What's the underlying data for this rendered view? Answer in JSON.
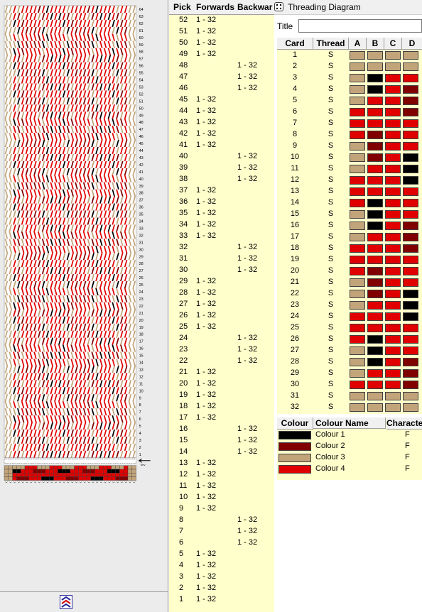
{
  "palette": {
    "c1": "#000000",
    "c2": "#800000",
    "c3": "#c2a47a",
    "c4": "#e00000"
  },
  "weave": {
    "row_numbers": [
      "64",
      "63",
      "62",
      "61",
      "60",
      "59",
      "58",
      "57",
      "56",
      "55",
      "54",
      "53",
      "52",
      "51",
      "50",
      "49",
      "48",
      "47",
      "46",
      "45",
      "44",
      "43",
      "42",
      "41",
      "40",
      "39",
      "38",
      "37",
      "36",
      "35",
      "34",
      "33",
      "32",
      "31",
      "30",
      "29",
      "28",
      "27",
      "26",
      "25",
      "24",
      "23",
      "22",
      "21",
      "20",
      "19",
      "18",
      "17",
      "16",
      "15",
      "14",
      "13",
      "12",
      "11",
      "10",
      "9",
      "8",
      "7",
      "6",
      "5",
      "4",
      "3",
      "2",
      "1"
    ],
    "cursor_label": "Sev"
  },
  "picks": {
    "headers": {
      "pick": "Pick",
      "forwards": "Forwards",
      "backwards": "Backwar"
    },
    "rows": [
      {
        "pick": "52",
        "fwd": "1 - 32",
        "bwd": ""
      },
      {
        "pick": "51",
        "fwd": "1 - 32",
        "bwd": ""
      },
      {
        "pick": "50",
        "fwd": "1 - 32",
        "bwd": ""
      },
      {
        "pick": "49",
        "fwd": "1 - 32",
        "bwd": ""
      },
      {
        "pick": "48",
        "fwd": "",
        "bwd": "1 - 32"
      },
      {
        "pick": "47",
        "fwd": "",
        "bwd": "1 - 32"
      },
      {
        "pick": "46",
        "fwd": "",
        "bwd": "1 - 32"
      },
      {
        "pick": "45",
        "fwd": "1 - 32",
        "bwd": ""
      },
      {
        "pick": "44",
        "fwd": "1 - 32",
        "bwd": ""
      },
      {
        "pick": "43",
        "fwd": "1 - 32",
        "bwd": ""
      },
      {
        "pick": "42",
        "fwd": "1 - 32",
        "bwd": ""
      },
      {
        "pick": "41",
        "fwd": "1 - 32",
        "bwd": ""
      },
      {
        "pick": "40",
        "fwd": "",
        "bwd": "1 - 32"
      },
      {
        "pick": "39",
        "fwd": "",
        "bwd": "1 - 32"
      },
      {
        "pick": "38",
        "fwd": "",
        "bwd": "1 - 32"
      },
      {
        "pick": "37",
        "fwd": "1 - 32",
        "bwd": ""
      },
      {
        "pick": "36",
        "fwd": "1 - 32",
        "bwd": ""
      },
      {
        "pick": "35",
        "fwd": "1 - 32",
        "bwd": ""
      },
      {
        "pick": "34",
        "fwd": "1 - 32",
        "bwd": ""
      },
      {
        "pick": "33",
        "fwd": "1 - 32",
        "bwd": ""
      },
      {
        "pick": "32",
        "fwd": "",
        "bwd": "1 - 32"
      },
      {
        "pick": "31",
        "fwd": "",
        "bwd": "1 - 32"
      },
      {
        "pick": "30",
        "fwd": "",
        "bwd": "1 - 32"
      },
      {
        "pick": "29",
        "fwd": "1 - 32",
        "bwd": ""
      },
      {
        "pick": "28",
        "fwd": "1 - 32",
        "bwd": ""
      },
      {
        "pick": "27",
        "fwd": "1 - 32",
        "bwd": ""
      },
      {
        "pick": "26",
        "fwd": "1 - 32",
        "bwd": ""
      },
      {
        "pick": "25",
        "fwd": "1 - 32",
        "bwd": ""
      },
      {
        "pick": "24",
        "fwd": "",
        "bwd": "1 - 32"
      },
      {
        "pick": "23",
        "fwd": "",
        "bwd": "1 - 32"
      },
      {
        "pick": "22",
        "fwd": "",
        "bwd": "1 - 32"
      },
      {
        "pick": "21",
        "fwd": "1 - 32",
        "bwd": ""
      },
      {
        "pick": "20",
        "fwd": "1 - 32",
        "bwd": ""
      },
      {
        "pick": "19",
        "fwd": "1 - 32",
        "bwd": ""
      },
      {
        "pick": "18",
        "fwd": "1 - 32",
        "bwd": ""
      },
      {
        "pick": "17",
        "fwd": "1 - 32",
        "bwd": ""
      },
      {
        "pick": "16",
        "fwd": "",
        "bwd": "1 - 32"
      },
      {
        "pick": "15",
        "fwd": "",
        "bwd": "1 - 32"
      },
      {
        "pick": "14",
        "fwd": "",
        "bwd": "1 - 32"
      },
      {
        "pick": "13",
        "fwd": "1 - 32",
        "bwd": ""
      },
      {
        "pick": "12",
        "fwd": "1 - 32",
        "bwd": ""
      },
      {
        "pick": "11",
        "fwd": "1 - 32",
        "bwd": ""
      },
      {
        "pick": "10",
        "fwd": "1 - 32",
        "bwd": ""
      },
      {
        "pick": "9",
        "fwd": "1 - 32",
        "bwd": ""
      },
      {
        "pick": "8",
        "fwd": "",
        "bwd": "1 - 32"
      },
      {
        "pick": "7",
        "fwd": "",
        "bwd": "1 - 32"
      },
      {
        "pick": "6",
        "fwd": "",
        "bwd": "1 - 32"
      },
      {
        "pick": "5",
        "fwd": "1 - 32",
        "bwd": ""
      },
      {
        "pick": "4",
        "fwd": "1 - 32",
        "bwd": ""
      },
      {
        "pick": "3",
        "fwd": "1 - 32",
        "bwd": ""
      },
      {
        "pick": "2",
        "fwd": "1 - 32",
        "bwd": ""
      },
      {
        "pick": "1",
        "fwd": "1 - 32",
        "bwd": ""
      }
    ]
  },
  "threading": {
    "window_title": "Threading Diagram",
    "title_label": "Title",
    "title_value": "",
    "headers": {
      "card": "Card",
      "thread": "Thread",
      "a": "A",
      "b": "B",
      "c": "C",
      "d": "D"
    },
    "cards": [
      {
        "card": "1",
        "thread": "S",
        "holes": [
          "c3",
          "c3",
          "c3",
          "c3"
        ]
      },
      {
        "card": "2",
        "thread": "S",
        "holes": [
          "c3",
          "c3",
          "c3",
          "c3"
        ]
      },
      {
        "card": "3",
        "thread": "S",
        "holes": [
          "c3",
          "c1",
          "c4",
          "c4"
        ]
      },
      {
        "card": "4",
        "thread": "S",
        "holes": [
          "c3",
          "c1",
          "c4",
          "c2"
        ]
      },
      {
        "card": "5",
        "thread": "S",
        "holes": [
          "c3",
          "c4",
          "c4",
          "c2"
        ]
      },
      {
        "card": "6",
        "thread": "S",
        "holes": [
          "c4",
          "c4",
          "c4",
          "c2"
        ]
      },
      {
        "card": "7",
        "thread": "S",
        "holes": [
          "c4",
          "c4",
          "c4",
          "c4"
        ]
      },
      {
        "card": "8",
        "thread": "S",
        "holes": [
          "c4",
          "c2",
          "c4",
          "c4"
        ]
      },
      {
        "card": "9",
        "thread": "S",
        "holes": [
          "c3",
          "c2",
          "c4",
          "c4"
        ]
      },
      {
        "card": "10",
        "thread": "S",
        "holes": [
          "c3",
          "c2",
          "c4",
          "c1"
        ]
      },
      {
        "card": "11",
        "thread": "S",
        "holes": [
          "c3",
          "c4",
          "c4",
          "c1"
        ]
      },
      {
        "card": "12",
        "thread": "S",
        "holes": [
          "c4",
          "c4",
          "c4",
          "c1"
        ]
      },
      {
        "card": "13",
        "thread": "S",
        "holes": [
          "c4",
          "c4",
          "c4",
          "c4"
        ]
      },
      {
        "card": "14",
        "thread": "S",
        "holes": [
          "c4",
          "c1",
          "c4",
          "c4"
        ]
      },
      {
        "card": "15",
        "thread": "S",
        "holes": [
          "c3",
          "c1",
          "c4",
          "c4"
        ]
      },
      {
        "card": "16",
        "thread": "S",
        "holes": [
          "c3",
          "c1",
          "c4",
          "c2"
        ]
      },
      {
        "card": "17",
        "thread": "S",
        "holes": [
          "c3",
          "c4",
          "c4",
          "c2"
        ]
      },
      {
        "card": "18",
        "thread": "S",
        "holes": [
          "c4",
          "c4",
          "c4",
          "c2"
        ]
      },
      {
        "card": "19",
        "thread": "S",
        "holes": [
          "c4",
          "c4",
          "c4",
          "c4"
        ]
      },
      {
        "card": "20",
        "thread": "S",
        "holes": [
          "c4",
          "c2",
          "c4",
          "c4"
        ]
      },
      {
        "card": "21",
        "thread": "S",
        "holes": [
          "c3",
          "c2",
          "c4",
          "c4"
        ]
      },
      {
        "card": "22",
        "thread": "S",
        "holes": [
          "c3",
          "c2",
          "c4",
          "c1"
        ]
      },
      {
        "card": "23",
        "thread": "S",
        "holes": [
          "c3",
          "c4",
          "c4",
          "c1"
        ]
      },
      {
        "card": "24",
        "thread": "S",
        "holes": [
          "c4",
          "c4",
          "c4",
          "c1"
        ]
      },
      {
        "card": "25",
        "thread": "S",
        "holes": [
          "c4",
          "c4",
          "c4",
          "c4"
        ]
      },
      {
        "card": "26",
        "thread": "S",
        "holes": [
          "c4",
          "c1",
          "c4",
          "c4"
        ]
      },
      {
        "card": "27",
        "thread": "S",
        "holes": [
          "c3",
          "c1",
          "c4",
          "c4"
        ]
      },
      {
        "card": "28",
        "thread": "S",
        "holes": [
          "c3",
          "c1",
          "c4",
          "c2"
        ]
      },
      {
        "card": "29",
        "thread": "S",
        "holes": [
          "c3",
          "c4",
          "c4",
          "c2"
        ]
      },
      {
        "card": "30",
        "thread": "S",
        "holes": [
          "c4",
          "c4",
          "c4",
          "c2"
        ]
      },
      {
        "card": "31",
        "thread": "S",
        "holes": [
          "c3",
          "c3",
          "c3",
          "c3"
        ]
      },
      {
        "card": "32",
        "thread": "S",
        "holes": [
          "c3",
          "c3",
          "c3",
          "c3"
        ]
      }
    ]
  },
  "colours": {
    "headers": {
      "colour": "Colour",
      "name": "Colour Name",
      "character": "Characte"
    },
    "rows": [
      {
        "key": "c1",
        "name": "Colour 1",
        "character": "F"
      },
      {
        "key": "c2",
        "name": "Colour 2",
        "character": "F"
      },
      {
        "key": "c3",
        "name": "Colour 3",
        "character": "F"
      },
      {
        "key": "c4",
        "name": "Colour 4",
        "character": "F"
      }
    ]
  }
}
